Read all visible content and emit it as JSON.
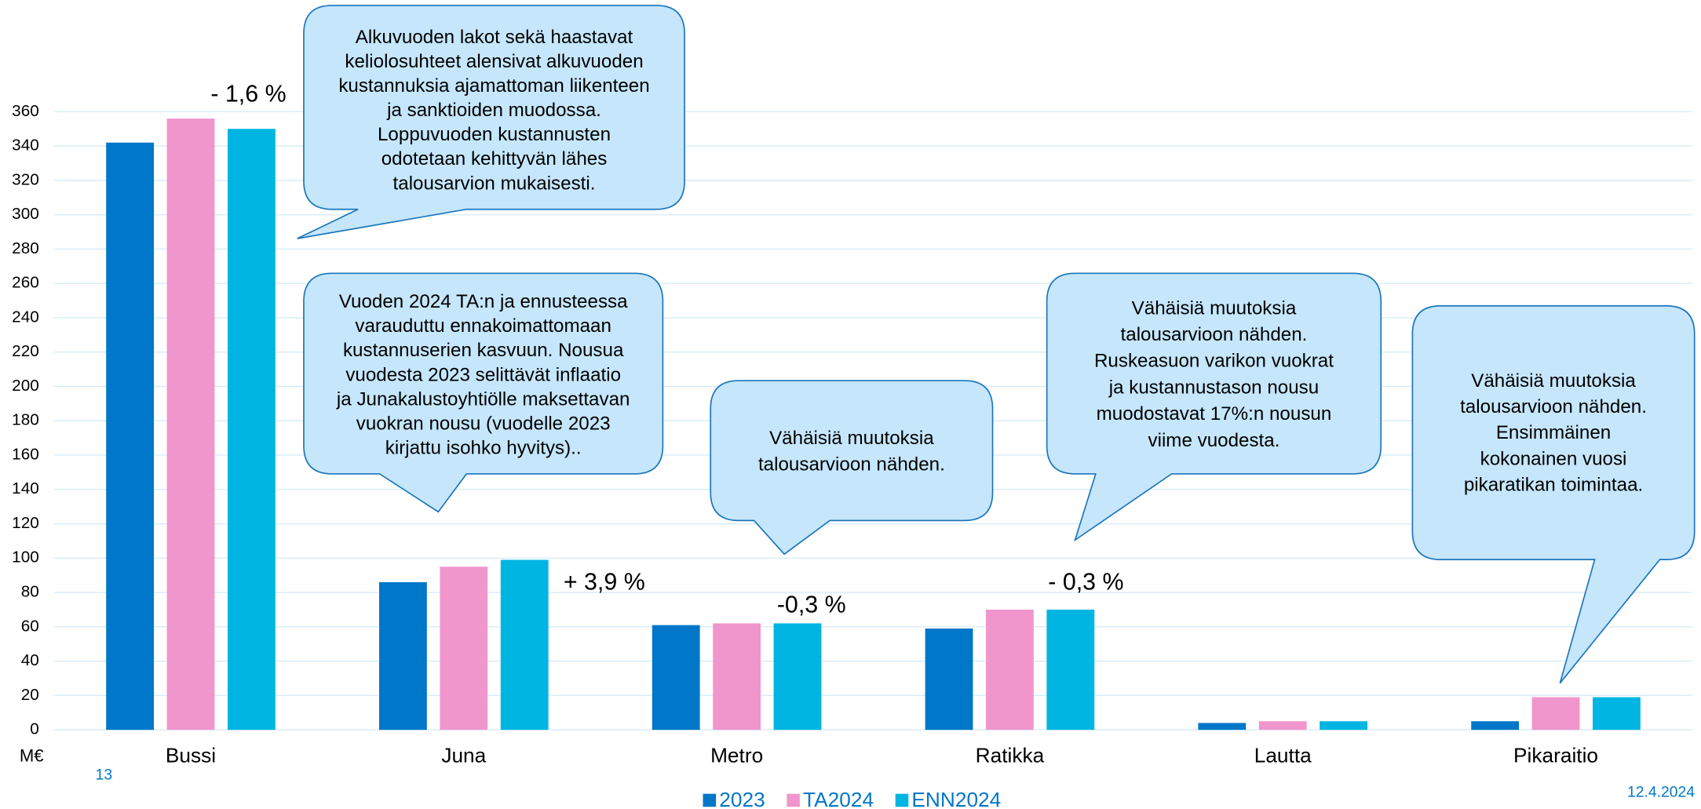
{
  "chart_data": {
    "type": "bar",
    "categories": [
      "Bussi",
      "Juna",
      "Metro",
      "Ratikka",
      "Lautta",
      "Pikaraitio"
    ],
    "series": [
      {
        "name": "2023",
        "color": "#0077c8",
        "values": [
          342,
          86,
          61,
          59,
          4,
          5
        ]
      },
      {
        "name": "TA2024",
        "color": "#f096cc",
        "values": [
          356,
          95,
          62,
          70,
          5,
          19
        ]
      },
      {
        "name": "ENN2024",
        "color": "#00b5e2",
        "values": [
          350,
          99,
          62,
          70,
          5,
          19
        ]
      }
    ],
    "ylim": [
      0,
      360
    ],
    "yticks": [
      0,
      20,
      40,
      60,
      80,
      100,
      120,
      140,
      160,
      180,
      200,
      220,
      240,
      260,
      280,
      300,
      320,
      340,
      360
    ],
    "y_unit": "M€",
    "grid": true,
    "legend": "bottom",
    "annotations": [
      "- 1,6 %",
      "+ 3,9 %",
      "-0,3 %",
      "- 0,3 %"
    ],
    "callouts": [
      {
        "lines": [
          "Alkuvuoden lakot sekä haastavat",
          "keliolosuhteet alensivat alkuvuoden",
          "kustannuksia ajamattoman liikenteen",
          "ja sanktioiden muodossa.",
          "Loppuvuoden kustannusten",
          "odotetaan kehittyvän lähes",
          "talousarvion mukaisesti."
        ]
      },
      {
        "lines": [
          "Vuoden 2024 TA:n ja ennusteessa",
          "varauduttu ennakoimattomaan",
          "kustannuserien kasvuun. Nousua",
          "vuodesta 2023 selittävät inflaatio",
          "ja Junakalustoyhtiölle maksettavan",
          "vuokran nousu (vuodelle 2023",
          "kirjattu isohko hyvitys).."
        ]
      },
      {
        "lines": [
          "Vähäisiä muutoksia",
          "talousarvioon nähden."
        ]
      },
      {
        "lines": [
          "Vähäisiä muutoksia",
          "talousarvioon nähden.",
          "Ruskeasuon varikon vuokrat",
          "ja kustannustason nousu",
          "muodostavat 17%:n nousun",
          "viime vuodesta."
        ]
      },
      {
        "lines": [
          "Vähäisiä muutoksia",
          "talousarvioon nähden.",
          "Ensimmäinen",
          "kokonainen vuosi",
          "pikaratikan toimintaa."
        ]
      }
    ],
    "page_number": "13",
    "date": "12.4.2024"
  }
}
